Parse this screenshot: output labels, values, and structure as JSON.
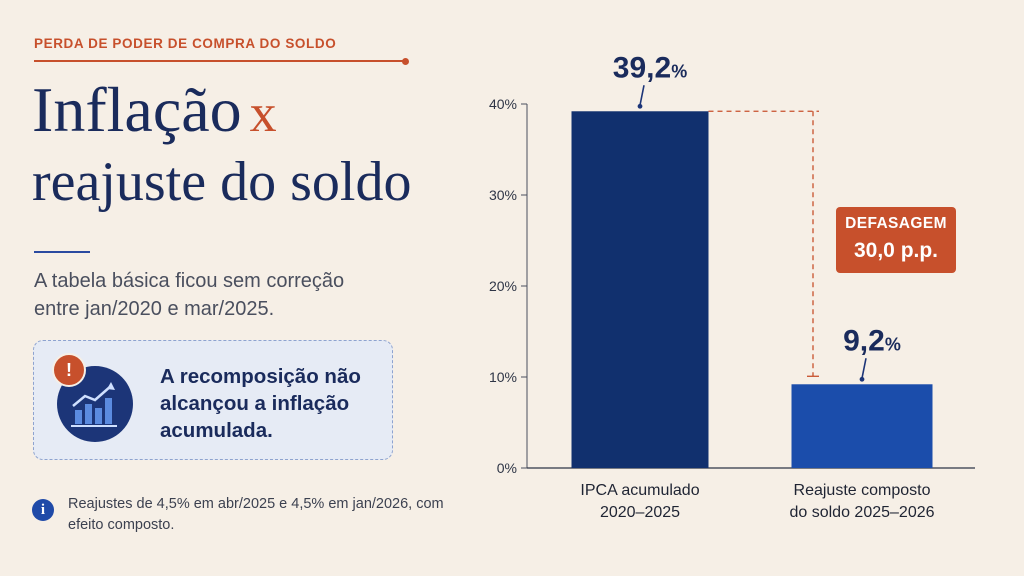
{
  "header": {
    "kicker": "PERDA DE PODER DE COMPRA DO SOLDO",
    "title_line1": "Inflação",
    "title_x": "x",
    "title_line2": "reajuste do soldo"
  },
  "subtitle": "A tabela básica ficou sem correção entre jan/2020 e mar/2025.",
  "callout": {
    "text": "A recomposição não alcançou a inflação acumulada.",
    "badge": "!",
    "icon": "growth-chart-icon"
  },
  "footnote": {
    "icon": "info-icon",
    "text": "Reajustes de 4,5% em abr/2025 e 4,5% em jan/2026, com efeito composto."
  },
  "colors": {
    "accent": "#c7502c",
    "navy": "#1a2b5c",
    "bar1": "#11306e",
    "bar2": "#1b4dab",
    "background": "#f6efe6"
  },
  "chart_data": {
    "type": "bar",
    "categories": [
      [
        "IPCA acumulado",
        "2020–2025"
      ],
      [
        "Reajuste composto",
        "do soldo 2025–2026"
      ]
    ],
    "values": [
      39.2,
      9.2
    ],
    "value_labels": [
      {
        "number": "39,2",
        "unit": "%"
      },
      {
        "number": "9,2",
        "unit": "%"
      }
    ],
    "yticks": [
      0,
      10,
      20,
      30,
      40
    ],
    "ytick_labels": [
      "0%",
      "10%",
      "20%",
      "30%",
      "40%"
    ],
    "ylim": [
      0,
      40
    ],
    "grid": false,
    "annotation": {
      "title": "DEFASAGEM",
      "value": "30,0 p.p."
    }
  }
}
